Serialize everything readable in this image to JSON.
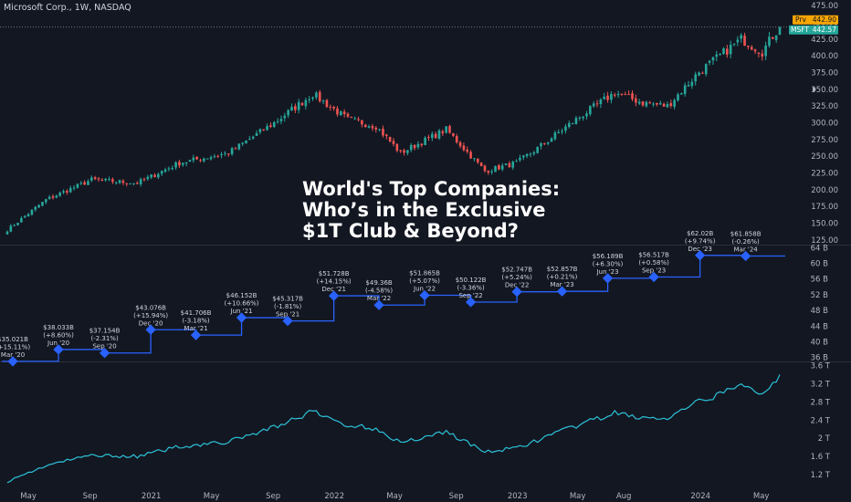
{
  "header": {
    "symbol_text": "Microsoft Corp., 1W, NASDAQ"
  },
  "overlay": {
    "line1": "World's Top Companies:",
    "line2": "Who’s in the Exclusive",
    "line3": "$1T Club & Beyond?"
  },
  "price_tags": {
    "prev_label": "Prv",
    "prev_value": "442.90",
    "sym_label": "MSFT",
    "sym_value": "442.57"
  },
  "colors": {
    "background": "#131722",
    "up": "#26a69a",
    "down": "#ef5350",
    "revenue_line": "#2962ff",
    "revenue_marker": "#2962ff",
    "mcap_line": "#2cc2d8",
    "axis_text": "#b2b5be",
    "grid": "#2a2e39"
  },
  "chart_data": [
    {
      "type": "candlestick",
      "title": "Microsoft Corp., 1W, NASDAQ",
      "x_tick_labels": [
        "May",
        "Sep",
        "2021",
        "May",
        "Sep",
        "2022",
        "May",
        "Sep",
        "2023",
        "May",
        "Aug",
        "2024",
        "May"
      ],
      "y_tick_labels": [
        "125.00",
        "150.00",
        "175.00",
        "200.00",
        "225.00",
        "250.00",
        "275.00",
        "300.00",
        "325.00",
        "350.00",
        "375.00",
        "400.00",
        "425.00",
        "450.00",
        "475.00"
      ],
      "ylim": [
        118,
        478
      ],
      "last_price": 442.57,
      "previous_close": 442.9,
      "anchors": [
        [
          "2020-03-20",
          140
        ],
        [
          "2020-06-05",
          185
        ],
        [
          "2020-09-04",
          215
        ],
        [
          "2020-12-04",
          210
        ],
        [
          "2021-02-26",
          240
        ],
        [
          "2021-06-04",
          255
        ],
        [
          "2021-09-03",
          300
        ],
        [
          "2021-11-19",
          343
        ],
        [
          "2022-01-28",
          305
        ],
        [
          "2022-03-25",
          295
        ],
        [
          "2022-05-13",
          255
        ],
        [
          "2022-08-12",
          290
        ],
        [
          "2022-10-28",
          228
        ],
        [
          "2022-12-30",
          240
        ],
        [
          "2023-02-03",
          258
        ],
        [
          "2023-04-28",
          305
        ],
        [
          "2023-07-14",
          345
        ],
        [
          "2023-09-08",
          330
        ],
        [
          "2023-10-27",
          325
        ],
        [
          "2023-12-29",
          376
        ],
        [
          "2024-03-22",
          425
        ],
        [
          "2024-05-03",
          406
        ],
        [
          "2024-05-24",
          430
        ],
        [
          "2024-06-07",
          442.57
        ]
      ]
    },
    {
      "type": "line",
      "series": [
        {
          "name": "",
          "marker": "diamond",
          "step": true
        }
      ],
      "y_tick_labels": [
        "36 B",
        "40 B",
        "44 B",
        "48 B",
        "52 B",
        "56 B",
        "60 B",
        "64 B"
      ],
      "ylim": [
        35,
        64.3
      ],
      "points": [
        {
          "x": "2020-03-31",
          "value": 35.021,
          "label": "$35.021B",
          "change": "(+15.11%)",
          "period": "Mar '20"
        },
        {
          "x": "2020-06-30",
          "value": 38.033,
          "label": "$38.033B",
          "change": "(+8.60%)",
          "period": "Jun '20"
        },
        {
          "x": "2020-09-30",
          "value": 37.154,
          "label": "$37.154B",
          "change": "(-2.31%)",
          "period": "Sep '20"
        },
        {
          "x": "2020-12-31",
          "value": 43.076,
          "label": "$43.076B",
          "change": "(+15.94%)",
          "period": "Dec '20"
        },
        {
          "x": "2021-03-31",
          "value": 41.706,
          "label": "$41.706B",
          "change": "(-3.18%)",
          "period": "Mar '21"
        },
        {
          "x": "2021-06-30",
          "value": 46.152,
          "label": "$46.152B",
          "change": "(+10.66%)",
          "period": "Jun '21"
        },
        {
          "x": "2021-09-30",
          "value": 45.317,
          "label": "$45.317B",
          "change": "(-1.81%)",
          "period": "Sep '21"
        },
        {
          "x": "2021-12-31",
          "value": 51.728,
          "label": "$51.728B",
          "change": "(+14.15%)",
          "period": "Dec '21"
        },
        {
          "x": "2022-03-31",
          "value": 49.36,
          "label": "$49.36B",
          "change": "(-4.58%)",
          "period": "Mar '22"
        },
        {
          "x": "2022-06-30",
          "value": 51.865,
          "label": "$51.865B",
          "change": "(+5.07%)",
          "period": "Jun '22"
        },
        {
          "x": "2022-09-30",
          "value": 50.122,
          "label": "$50.122B",
          "change": "(-3.36%)",
          "period": "Sep '22"
        },
        {
          "x": "2022-12-31",
          "value": 52.747,
          "label": "$52.747B",
          "change": "(+5.24%)",
          "period": "Dec '22"
        },
        {
          "x": "2023-03-31",
          "value": 52.857,
          "label": "$52.857B",
          "change": "(+0.21%)",
          "period": "Mar '23"
        },
        {
          "x": "2023-06-30",
          "value": 56.189,
          "label": "$56.189B",
          "change": "(+6.30%)",
          "period": "Jun '23"
        },
        {
          "x": "2023-09-30",
          "value": 56.517,
          "label": "$56.517B",
          "change": "(+0.58%)",
          "period": "Sep '23"
        },
        {
          "x": "2023-12-31",
          "value": 62.02,
          "label": "$62.02B",
          "change": "(+9.74%)",
          "period": "Dec '23"
        },
        {
          "x": "2024-03-31",
          "value": 61.858,
          "label": "$61.858B",
          "change": "(-0.26%)",
          "period": "Mar '24"
        }
      ]
    },
    {
      "type": "line",
      "series": [
        {
          "name": ""
        }
      ],
      "y_tick_labels": [
        "1.2 T",
        "1.6 T",
        "2 T",
        "2.4 T",
        "2.8 T",
        "3.2 T",
        "3.6 T"
      ],
      "ylim": [
        1.0,
        3.65
      ],
      "anchors": [
        [
          "2020-03-20",
          1.05
        ],
        [
          "2020-06-05",
          1.4
        ],
        [
          "2020-09-04",
          1.63
        ],
        [
          "2020-12-04",
          1.6
        ],
        [
          "2021-02-26",
          1.82
        ],
        [
          "2021-06-04",
          1.92
        ],
        [
          "2021-09-03",
          2.25
        ],
        [
          "2021-11-19",
          2.58
        ],
        [
          "2022-01-28",
          2.28
        ],
        [
          "2022-03-25",
          2.22
        ],
        [
          "2022-05-13",
          1.9
        ],
        [
          "2022-08-12",
          2.15
        ],
        [
          "2022-10-28",
          1.7
        ],
        [
          "2022-12-30",
          1.78
        ],
        [
          "2023-02-03",
          1.93
        ],
        [
          "2023-04-28",
          2.27
        ],
        [
          "2023-07-14",
          2.55
        ],
        [
          "2023-09-08",
          2.45
        ],
        [
          "2023-10-27",
          2.42
        ],
        [
          "2023-12-29",
          2.8
        ],
        [
          "2024-03-22",
          3.15
        ],
        [
          "2024-05-03",
          3.0
        ],
        [
          "2024-05-24",
          3.2
        ],
        [
          "2024-06-07",
          3.4
        ]
      ]
    }
  ]
}
